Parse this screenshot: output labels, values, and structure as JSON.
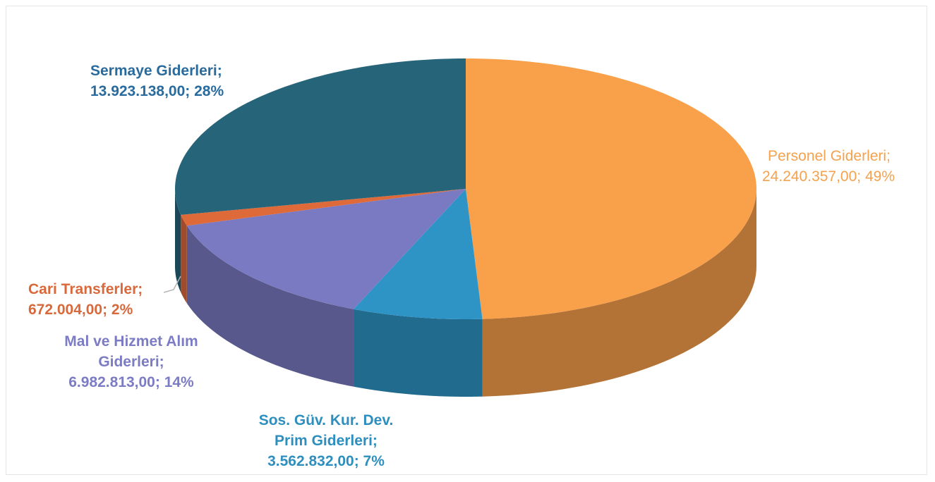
{
  "chart_data": {
    "type": "pie",
    "style": "3d",
    "slices": [
      {
        "name": "Personel Giderleri",
        "value": 24240357.0,
        "value_label": "24.240.357,00",
        "percent_label": "49%",
        "color": "#f9a04b"
      },
      {
        "name": "Sos. Güv. Kur. Dev. Prim Giderleri",
        "value": 3562832.0,
        "value_label": "3.562.832,00",
        "percent_label": "7%",
        "color": "#2e94c6"
      },
      {
        "name": "Mal ve Hizmet Alım Giderleri",
        "value": 6982813.0,
        "value_label": "6.982.813,00",
        "percent_label": "14%",
        "color": "#7a7ac3"
      },
      {
        "name": "Cari Transferler",
        "value": 672004.0,
        "value_label": "672.004,00",
        "percent_label": "2%",
        "color": "#de6a3a"
      },
      {
        "name": "Sermaye Giderleri",
        "value": 13923138.0,
        "value_label": "13.923.138,00",
        "percent_label": "28%",
        "color": "#26647a"
      }
    ]
  },
  "labels": {
    "sermaye": {
      "line1": "Sermaye Giderleri;",
      "line2": "13.923.138,00; 28%"
    },
    "personel": {
      "line1": "Personel Giderleri;",
      "line2": "24.240.357,00; 49%"
    },
    "cari": {
      "line1": "Cari Transferler;",
      "line2": "672.004,00; 2%"
    },
    "mal": {
      "line1": "Mal ve Hizmet Alım",
      "line2": "Giderleri;",
      "line3": "6.982.813,00; 14%"
    },
    "sos": {
      "line1": "Sos. Güv. Kur. Dev.",
      "line2": "Prim Giderleri;",
      "line3": "3.562.832,00; 7%"
    }
  },
  "label_colors": {
    "sermaye": "#2a6b9e",
    "personel": "#f5a24e",
    "cari": "#d9683a",
    "mal": "#7b7cc4",
    "sos": "#2e8fbf"
  }
}
